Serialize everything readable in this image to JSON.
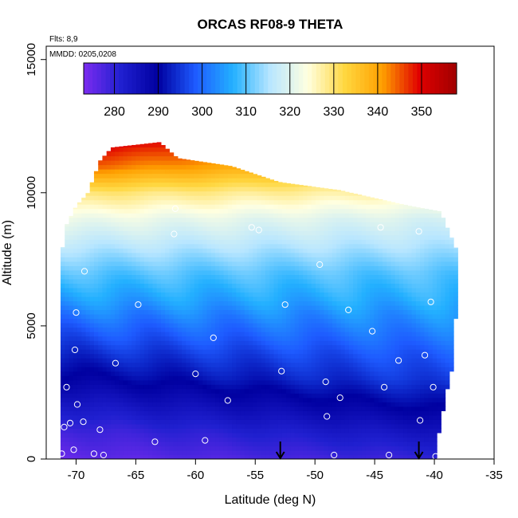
{
  "chart_data": {
    "type": "heatmap",
    "title": "ORCAS RF08-9 THETA",
    "xlabel": "Latitude (deg N)",
    "ylabel": "Altitude (m)",
    "xlim": [
      -72.5,
      -35
    ],
    "ylim": [
      0,
      15500
    ],
    "x_ticks": [
      "-70",
      "-65",
      "-60",
      "-55",
      "-50",
      "-45",
      "-40",
      "-35"
    ],
    "x_tick_values": [
      -70,
      -65,
      -60,
      -55,
      -50,
      -45,
      -40,
      -35
    ],
    "y_ticks": [
      "0",
      "5000",
      "10000",
      "15000"
    ],
    "y_tick_values": [
      0,
      5000,
      10000,
      15000
    ],
    "annotations": [
      "Flts: 8,9",
      "MMDD: 0205,0208"
    ],
    "colorbar": {
      "range": [
        273,
        358
      ],
      "tick_labels": [
        "280",
        "290",
        "300",
        "310",
        "320",
        "330",
        "340",
        "350"
      ],
      "tick_values": [
        280,
        290,
        300,
        310,
        320,
        330,
        340,
        350
      ],
      "colors": [
        "#7b2cf0",
        "#2020d0",
        "#0000a0",
        "#1e5bff",
        "#23b0ff",
        "#b8e6ff",
        "#ffffe0",
        "#ffd740",
        "#ffa000",
        "#e00000",
        "#a00000"
      ]
    },
    "domain_extent": {
      "lat_min": -71.3,
      "lat_max": -38.0,
      "top_boundary": [
        [
          -71.3,
          7500
        ],
        [
          -70.8,
          8800
        ],
        [
          -70.0,
          9500
        ],
        [
          -69.0,
          10000
        ],
        [
          -68.0,
          11200
        ],
        [
          -67.0,
          11700
        ],
        [
          -63.0,
          11900
        ],
        [
          -61.5,
          11300
        ],
        [
          -57.0,
          11000
        ],
        [
          -53.0,
          10400
        ],
        [
          -48.0,
          10100
        ],
        [
          -45.0,
          9800
        ],
        [
          -42.0,
          9500
        ],
        [
          -39.5,
          9300
        ],
        [
          -38.0,
          7700
        ]
      ],
      "bottom_boundary": [
        [
          -71.3,
          0
        ],
        [
          -39.8,
          0
        ],
        [
          -39.6,
          1200
        ],
        [
          -38.5,
          3500
        ],
        [
          -38.2,
          5500
        ],
        [
          -38.0,
          7700
        ]
      ]
    },
    "theta_profile_by_altitude": {
      "altitude_m": [
        0,
        1000,
        2000,
        3000,
        4000,
        5000,
        6000,
        7000,
        8000,
        9000,
        10000,
        11000,
        12000
      ],
      "theta_K_north_edge": [
        280,
        285,
        291,
        296,
        299,
        303,
        307,
        310,
        315,
        319,
        326,
        333,
        336
      ],
      "theta_K_south_edge": [
        275,
        278,
        283,
        289,
        294,
        299,
        305,
        310,
        316,
        322,
        330,
        345,
        354
      ]
    },
    "flight_track_points": [
      {
        "lat": -71.2,
        "alt": 200
      },
      {
        "lat": -70.2,
        "alt": 350
      },
      {
        "lat": -68.5,
        "alt": 200
      },
      {
        "lat": -67.7,
        "alt": 150
      },
      {
        "lat": -71.0,
        "alt": 1200
      },
      {
        "lat": -69.4,
        "alt": 1400
      },
      {
        "lat": -68.0,
        "alt": 1100
      },
      {
        "lat": -70.5,
        "alt": 1350
      },
      {
        "lat": -69.9,
        "alt": 2050
      },
      {
        "lat": -70.8,
        "alt": 2700
      },
      {
        "lat": -66.7,
        "alt": 3600
      },
      {
        "lat": -70.1,
        "alt": 4100
      },
      {
        "lat": -70.0,
        "alt": 5500
      },
      {
        "lat": -69.3,
        "alt": 7050
      },
      {
        "lat": -64.8,
        "alt": 5800
      },
      {
        "lat": -67.7,
        "alt": 11600
      },
      {
        "lat": -63.4,
        "alt": 650
      },
      {
        "lat": -59.2,
        "alt": 700
      },
      {
        "lat": -60.0,
        "alt": 3200
      },
      {
        "lat": -58.5,
        "alt": 4550
      },
      {
        "lat": -57.3,
        "alt": 2200
      },
      {
        "lat": -52.8,
        "alt": 3300
      },
      {
        "lat": -52.5,
        "alt": 5800
      },
      {
        "lat": -48.4,
        "alt": 150
      },
      {
        "lat": -49.0,
        "alt": 1600
      },
      {
        "lat": -49.1,
        "alt": 2900
      },
      {
        "lat": -47.9,
        "alt": 2300
      },
      {
        "lat": -44.2,
        "alt": 2700
      },
      {
        "lat": -43.0,
        "alt": 3700
      },
      {
        "lat": -45.2,
        "alt": 4800
      },
      {
        "lat": -43.8,
        "alt": 150
      },
      {
        "lat": -41.2,
        "alt": 1450
      },
      {
        "lat": -40.8,
        "alt": 3900
      },
      {
        "lat": -40.1,
        "alt": 2700
      },
      {
        "lat": -40.3,
        "alt": 5900
      },
      {
        "lat": -39.9,
        "alt": 100
      },
      {
        "lat": -47.2,
        "alt": 5600
      },
      {
        "lat": -44.5,
        "alt": 8700
      },
      {
        "lat": -41.3,
        "alt": 8550
      },
      {
        "lat": -49.6,
        "alt": 7300
      },
      {
        "lat": -55.3,
        "alt": 8700
      },
      {
        "lat": -54.7,
        "alt": 8600
      },
      {
        "lat": -61.8,
        "alt": 8450
      },
      {
        "lat": -61.7,
        "alt": 9400
      }
    ],
    "arrows": [
      {
        "lat": -52.9,
        "alt": 0
      },
      {
        "lat": -41.3,
        "alt": 0
      }
    ]
  }
}
